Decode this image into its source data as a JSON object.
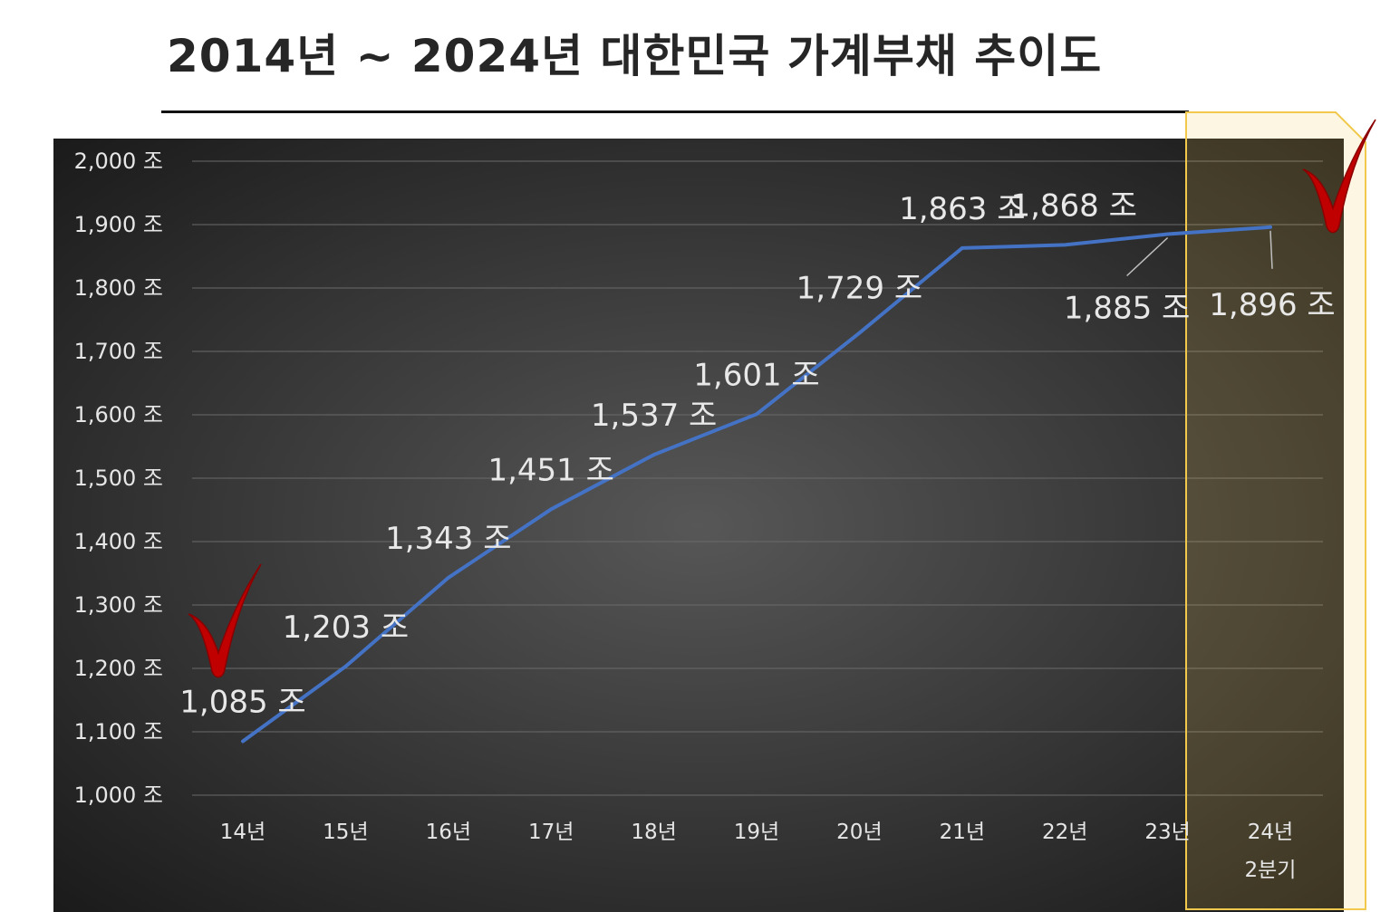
{
  "title": "2014년 ~ 2024년 대한민국 가계부채 추이도",
  "chart_data": {
    "type": "line",
    "title": "2014년 ~ 2024년 대한민국 가계부채 추이도",
    "categories": [
      "14년",
      "15년",
      "16년",
      "17년",
      "18년",
      "19년",
      "20년",
      "21년",
      "22년",
      "23년",
      "24년\n2분기"
    ],
    "series": [
      {
        "values": [
          1085,
          1203,
          1343,
          1451,
          1537,
          1601,
          1729,
          1863,
          1868,
          1885,
          1896
        ],
        "labels": [
          "1,085 조",
          "1,203 조",
          "1,343 조",
          "1,451 조",
          "1,537 조",
          "1,601 조",
          "1,729 조",
          "1,863 조",
          "1,868 조",
          "1,885 조",
          "1,896 조"
        ],
        "color": "#4472c4"
      }
    ],
    "ylim": [
      1000,
      2000
    ],
    "y_ticks": [
      1000,
      1100,
      1200,
      1300,
      1400,
      1500,
      1600,
      1700,
      1800,
      1900,
      2000
    ],
    "y_tick_labels": [
      "1,000 조",
      "1,100 조",
      "1,200 조",
      "1,300 조",
      "1,400 조",
      "1,500 조",
      "1,600 조",
      "1,700 조",
      "1,800 조",
      "1,900 조",
      "2,000 조"
    ],
    "grid": true,
    "xlabel": "",
    "ylabel": "",
    "highlight": {
      "category": "24년\n2분기",
      "color": "#f2c94c"
    },
    "annotations": [
      {
        "type": "check-mark",
        "category": "14년",
        "color": "#c00000"
      },
      {
        "type": "check-mark",
        "category": "24년\n2분기",
        "color": "#c00000"
      }
    ],
    "background": {
      "from": "#555555",
      "to": "#1a1a1a"
    }
  }
}
